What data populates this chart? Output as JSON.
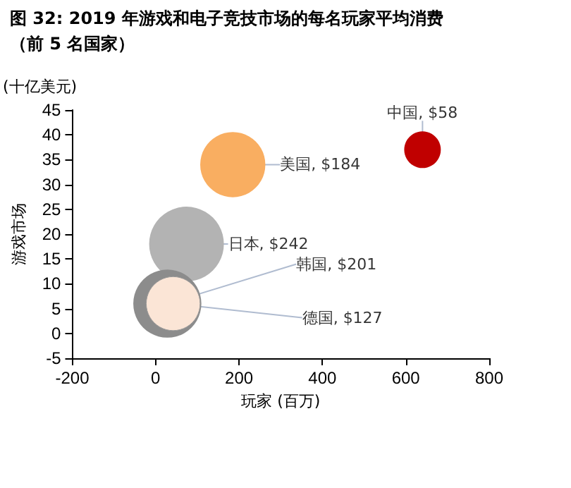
{
  "chart_data": {
    "type": "bubble",
    "title": "图 32: 2019 年游戏和电子竞技市场的每名玩家平均消费",
    "subtitle": "（前 5 名国家）",
    "xlabel": "玩家 (百万)",
    "ylabel": "游戏市场",
    "annotations": [
      "(十亿美元)",
      {
        "text": "中国, $58",
        "x": 640,
        "y": 37
      },
      {
        "text": "美国, $184",
        "x": 185,
        "y": 34
      },
      {
        "text": "日本, $242",
        "x": 74,
        "y": 18
      },
      {
        "text": "韩国, $201",
        "x": 28,
        "y": 6
      },
      {
        "text": "德国, $127",
        "x": 42,
        "y": 6
      }
    ],
    "x": [
      640,
      185,
      74,
      28,
      42
    ],
    "values": [
      37,
      34,
      18,
      6,
      6
    ],
    "sizes": [
      0.24,
      0.76,
      1,
      0.83,
      0.52
    ],
    "colors": [
      "#c00000",
      "#f9ae61",
      "#b3b3b3",
      "#8c8c8c",
      "#fbe5d6"
    ],
    "xlim": [
      -200,
      800
    ],
    "xticks": [
      -200,
      0,
      200,
      400,
      600,
      800
    ],
    "ylim": [
      -5,
      45
    ],
    "yticks": [
      -5,
      0,
      5,
      10,
      15,
      20,
      25,
      30,
      35,
      40,
      45
    ],
    "grid": false
  }
}
